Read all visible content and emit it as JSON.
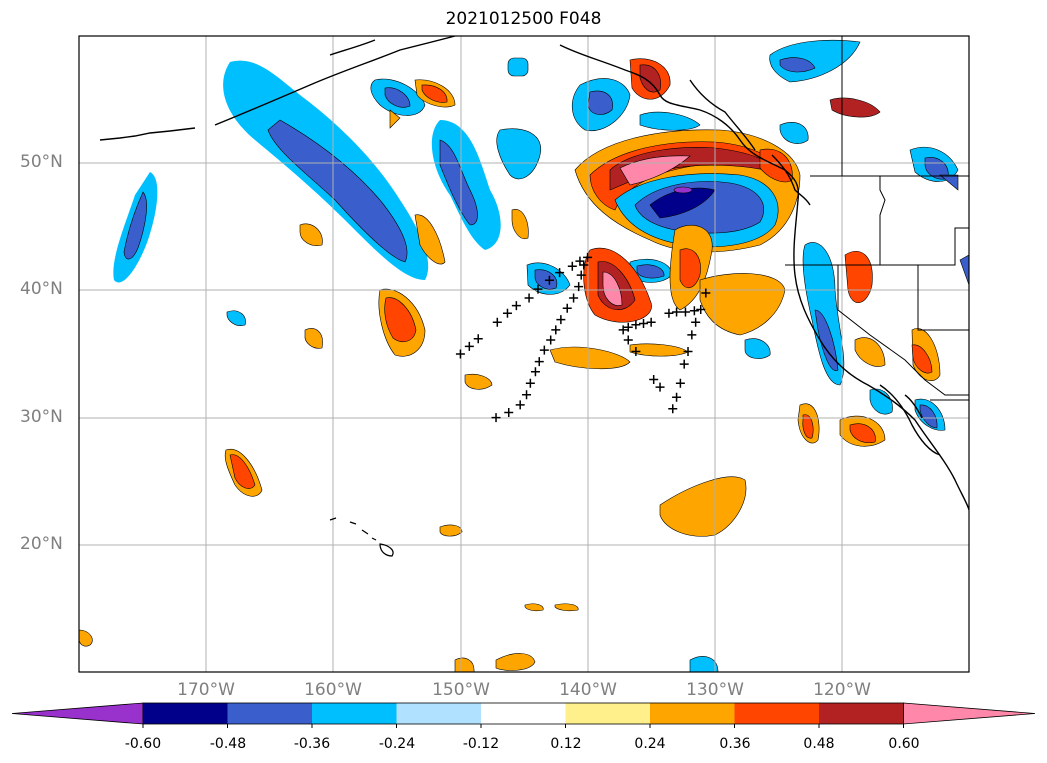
{
  "title": "2021012500 F048",
  "map": {
    "projection": "equirectangular",
    "lon_range": [
      -180,
      -110
    ],
    "lat_range": [
      10,
      60
    ],
    "gridlines": true,
    "coastlines": true,
    "country_and_state_borders": true
  },
  "lat_labels": [
    "50°N",
    "40°N",
    "30°N",
    "20°N"
  ],
  "lon_labels": [
    "170°W",
    "160°W",
    "150°W",
    "140°W",
    "130°W",
    "120°W"
  ],
  "colorbar": {
    "extend": "both",
    "colors": [
      "#9932cc",
      "#00008b",
      "#3a5fcd",
      "#00bfff",
      "#b0e2ff",
      "#ffffff",
      "#fff08c",
      "#ffa500",
      "#ff4500",
      "#b22222",
      "#ff88aa"
    ],
    "tick_labels": [
      "-0.60",
      "-0.48",
      "-0.36",
      "-0.24",
      "-0.12",
      "0.12",
      "0.24",
      "0.36",
      "0.48",
      "0.60"
    ]
  },
  "markers": {
    "symbol": "+",
    "tracks": [
      [
        [
          -150,
          35
        ],
        [
          -149.3,
          35.6
        ],
        [
          -148.6,
          36.2
        ],
        [
          -147.1,
          37.5
        ],
        [
          -146.3,
          38.2
        ],
        [
          -145.6,
          38.8
        ],
        [
          -144.6,
          39.4
        ],
        [
          -143.9,
          40.1
        ],
        [
          -143.0,
          40.8
        ],
        [
          -142.2,
          41.4
        ],
        [
          -141.2,
          41.9
        ],
        [
          -140.6,
          42.3
        ],
        [
          -140.0,
          42.6
        ]
      ],
      [
        [
          -147.2,
          30
        ],
        [
          -146.2,
          30.4
        ],
        [
          -145.3,
          31.0
        ],
        [
          -144.8,
          31.8
        ],
        [
          -144.5,
          32.7
        ],
        [
          -144.1,
          33.6
        ],
        [
          -143.8,
          34.4
        ],
        [
          -143.4,
          35.3
        ],
        [
          -142.9,
          36.1
        ],
        [
          -142.5,
          36.9
        ],
        [
          -142.1,
          37.7
        ],
        [
          -141.6,
          38.6
        ],
        [
          -141.1,
          39.4
        ],
        [
          -140.7,
          40.3
        ],
        [
          -140.5,
          41.2
        ],
        [
          -140.3,
          42.0
        ]
      ],
      [
        [
          -133.3,
          30.7
        ],
        [
          -133.0,
          31.6
        ],
        [
          -132.7,
          32.7
        ],
        [
          -132.4,
          34.2
        ],
        [
          -132.1,
          35.2
        ],
        [
          -131.8,
          36.5
        ],
        [
          -131.5,
          37.5
        ],
        [
          -131.1,
          38.5
        ],
        [
          -130.7,
          39.8
        ]
      ],
      [
        [
          -134.8,
          33
        ],
        [
          -134.3,
          32.4
        ]
      ],
      [
        [
          -137.2,
          36.9
        ],
        [
          -136.8,
          37.1
        ],
        [
          -136.2,
          37.3
        ],
        [
          -135.6,
          37.4
        ],
        [
          -135.0,
          37.5
        ],
        [
          -133.6,
          38.2
        ],
        [
          -133.0,
          38.3
        ],
        [
          -132.3,
          38.3
        ],
        [
          -131.6,
          38.4
        ]
      ],
      [
        [
          -136.8,
          36.1
        ],
        [
          -136.2,
          35.2
        ]
      ]
    ]
  }
}
